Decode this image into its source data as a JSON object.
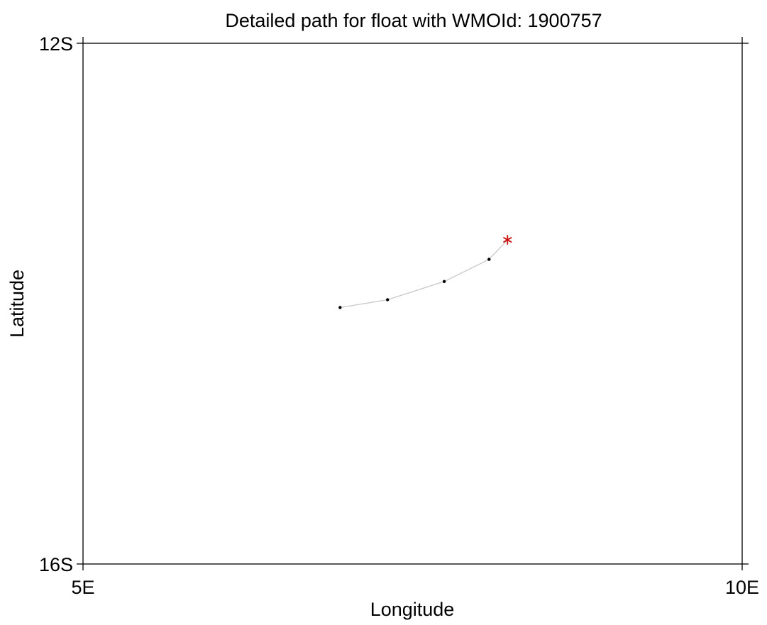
{
  "chart_data": {
    "type": "scatter",
    "title": "Detailed path for float with WMOId: 1900757",
    "xlabel": "Longitude",
    "ylabel": "Latitude",
    "xlim": [
      5,
      10
    ],
    "ylim": [
      -16,
      -12
    ],
    "x_ticks": [
      {
        "value": 5,
        "label": "5E"
      },
      {
        "value": 10,
        "label": "10E"
      }
    ],
    "y_ticks": [
      {
        "value": -12,
        "label": "12S"
      },
      {
        "value": -16,
        "label": "16S"
      }
    ],
    "grid": false,
    "series": [
      {
        "x": [
          6.95,
          7.31,
          7.74,
          8.08
        ],
        "y": [
          -14.03,
          -13.97,
          -13.83,
          -13.66
        ],
        "marker": "dot",
        "line": true,
        "color": "#000000",
        "line_color": "#c8c8c8"
      },
      {
        "x": [
          8.22
        ],
        "y": [
          -13.51
        ],
        "marker": "asterisk",
        "color": "#cc1111"
      }
    ]
  }
}
